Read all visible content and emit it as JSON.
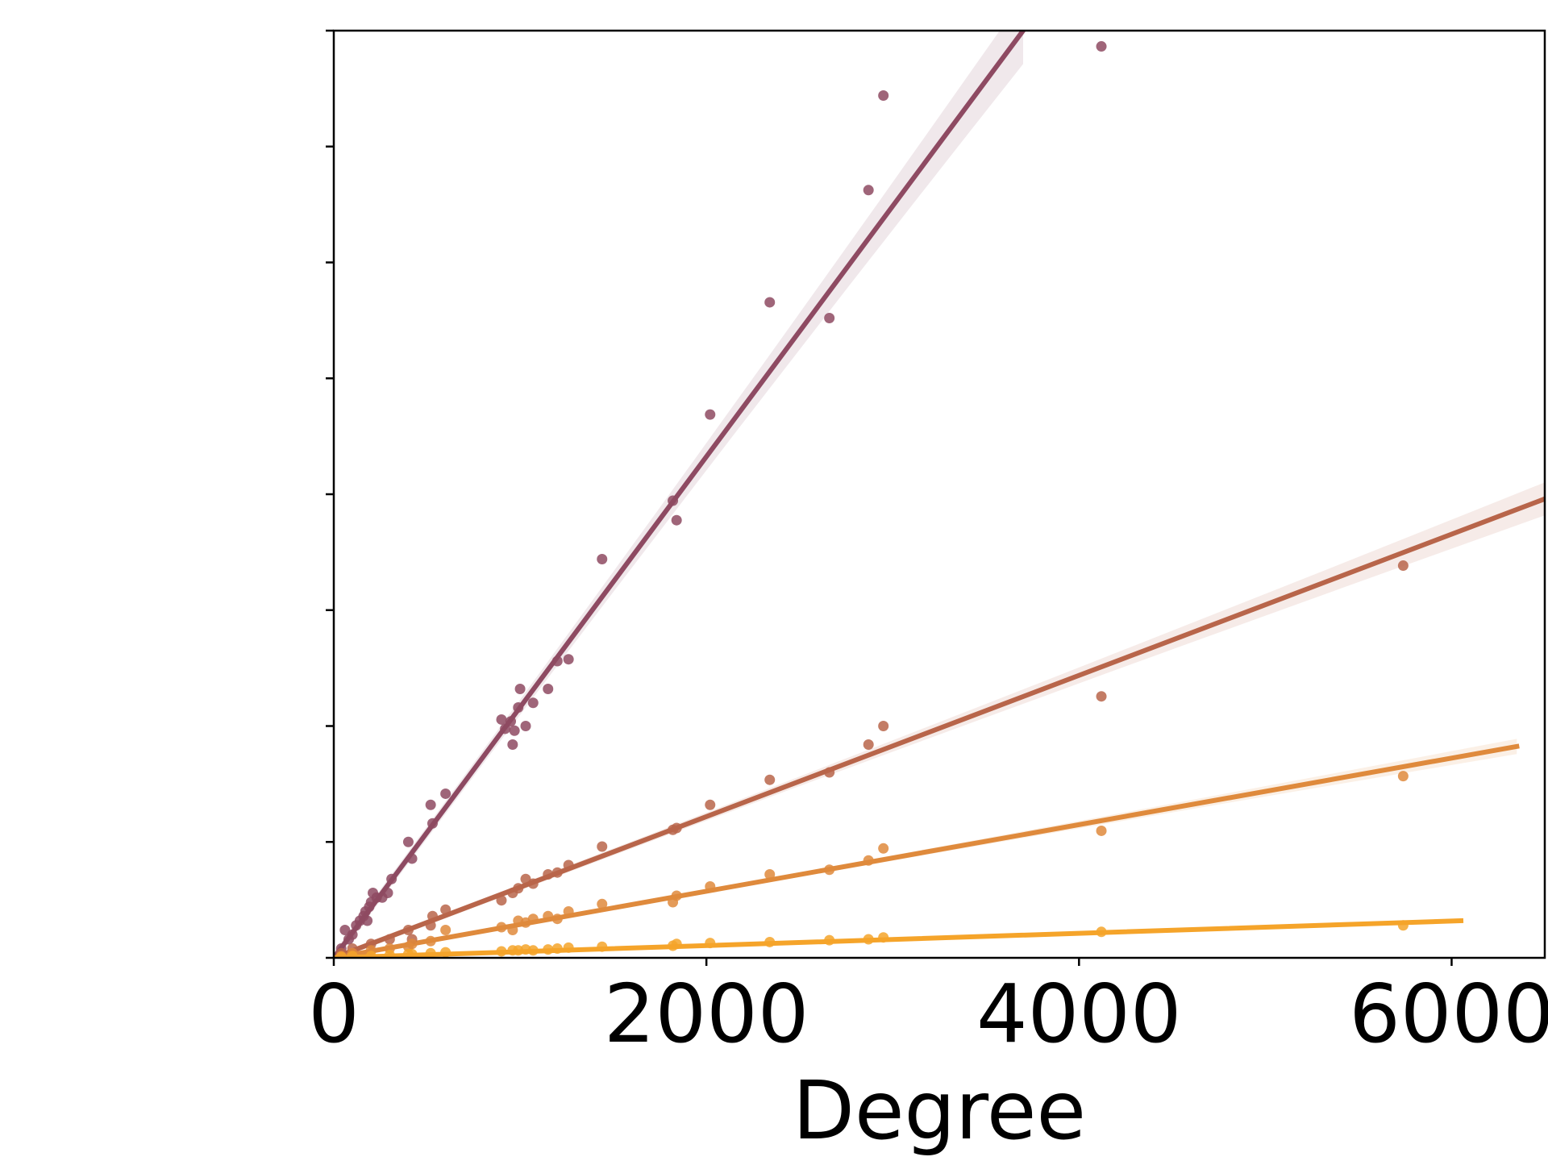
{
  "chart_data": {
    "type": "scatter",
    "title": "",
    "xlabel": "Degree",
    "ylabel": "",
    "xlim": [
      0,
      6500
    ],
    "ylim": [
      0,
      1
    ],
    "x_ticks": [
      0,
      2000,
      4000,
      6000
    ],
    "x_tick_labels": [
      "0",
      "2000",
      "4000",
      "6000"
    ],
    "y_ticks": [
      0,
      0.125,
      0.25,
      0.375,
      0.5,
      0.625,
      0.75,
      0.875,
      1.0
    ],
    "y_tick_labels_shown": false,
    "grid": false,
    "legend": false,
    "series": [
      {
        "color": "#8e4a62",
        "points": [
          [
            40,
            0.01
          ],
          [
            60,
            0.03
          ],
          [
            80,
            0.02
          ],
          [
            100,
            0.025
          ],
          [
            120,
            0.035
          ],
          [
            140,
            0.04
          ],
          [
            160,
            0.045
          ],
          [
            170,
            0.05
          ],
          [
            180,
            0.04
          ],
          [
            190,
            0.055
          ],
          [
            200,
            0.06
          ],
          [
            210,
            0.07
          ],
          [
            230,
            0.065
          ],
          [
            260,
            0.065
          ],
          [
            290,
            0.07
          ],
          [
            310,
            0.085
          ],
          [
            400,
            0.125
          ],
          [
            420,
            0.107
          ],
          [
            520,
            0.165
          ],
          [
            530,
            0.145
          ],
          [
            600,
            0.177
          ],
          [
            900,
            0.257
          ],
          [
            920,
            0.247
          ],
          [
            950,
            0.255
          ],
          [
            960,
            0.23
          ],
          [
            970,
            0.245
          ],
          [
            990,
            0.27
          ],
          [
            1000,
            0.29
          ],
          [
            1030,
            0.25
          ],
          [
            1070,
            0.275
          ],
          [
            1150,
            0.29
          ],
          [
            1200,
            0.32
          ],
          [
            1260,
            0.322
          ],
          [
            1440,
            0.43
          ],
          [
            1820,
            0.493
          ],
          [
            1840,
            0.472
          ],
          [
            2020,
            0.586
          ],
          [
            2340,
            0.707
          ],
          [
            2660,
            0.69
          ],
          [
            2870,
            0.828
          ],
          [
            2950,
            0.93
          ],
          [
            4120,
            0.983
          ]
        ],
        "fit": {
          "x": [
            0,
            3700
          ],
          "y": [
            0,
            1.0
          ]
        }
      },
      {
        "color": "#b8654a",
        "points": [
          [
            40,
            0.005
          ],
          [
            100,
            0.01
          ],
          [
            200,
            0.015
          ],
          [
            300,
            0.02
          ],
          [
            400,
            0.03
          ],
          [
            420,
            0.02
          ],
          [
            520,
            0.035
          ],
          [
            530,
            0.045
          ],
          [
            600,
            0.052
          ],
          [
            900,
            0.062
          ],
          [
            960,
            0.07
          ],
          [
            990,
            0.075
          ],
          [
            1030,
            0.085
          ],
          [
            1070,
            0.08
          ],
          [
            1150,
            0.09
          ],
          [
            1200,
            0.092
          ],
          [
            1260,
            0.1
          ],
          [
            1440,
            0.12
          ],
          [
            1820,
            0.138
          ],
          [
            1840,
            0.14
          ],
          [
            2020,
            0.165
          ],
          [
            2340,
            0.192
          ],
          [
            2660,
            0.2
          ],
          [
            2870,
            0.23
          ],
          [
            2950,
            0.25
          ],
          [
            4120,
            0.282
          ],
          [
            5740,
            0.423
          ]
        ],
        "fit": {
          "x": [
            0,
            6500
          ],
          "y": [
            0,
            0.495
          ]
        }
      },
      {
        "color": "#df8a3c",
        "points": [
          [
            40,
            0.002
          ],
          [
            100,
            0.005
          ],
          [
            200,
            0.008
          ],
          [
            300,
            0.01
          ],
          [
            400,
            0.012
          ],
          [
            420,
            0.015
          ],
          [
            520,
            0.018
          ],
          [
            600,
            0.03
          ],
          [
            900,
            0.033
          ],
          [
            960,
            0.03
          ],
          [
            990,
            0.04
          ],
          [
            1030,
            0.038
          ],
          [
            1070,
            0.042
          ],
          [
            1150,
            0.045
          ],
          [
            1200,
            0.042
          ],
          [
            1260,
            0.05
          ],
          [
            1440,
            0.058
          ],
          [
            1820,
            0.06
          ],
          [
            1840,
            0.067
          ],
          [
            2020,
            0.077
          ],
          [
            2340,
            0.09
          ],
          [
            2660,
            0.095
          ],
          [
            2870,
            0.105
          ],
          [
            2950,
            0.118
          ],
          [
            4120,
            0.137
          ],
          [
            5740,
            0.196
          ]
        ],
        "fit": {
          "x": [
            0,
            6350
          ],
          "y": [
            0,
            0.228
          ]
        }
      },
      {
        "color": "#f5a42a",
        "points": [
          [
            40,
            0.001
          ],
          [
            100,
            0.002
          ],
          [
            200,
            0.002
          ],
          [
            300,
            0.003
          ],
          [
            400,
            0.004
          ],
          [
            420,
            0.004
          ],
          [
            520,
            0.005
          ],
          [
            600,
            0.006
          ],
          [
            900,
            0.007
          ],
          [
            960,
            0.008
          ],
          [
            990,
            0.008
          ],
          [
            1030,
            0.009
          ],
          [
            1070,
            0.008
          ],
          [
            1150,
            0.009
          ],
          [
            1200,
            0.01
          ],
          [
            1260,
            0.011
          ],
          [
            1440,
            0.012
          ],
          [
            1820,
            0.013
          ],
          [
            1840,
            0.015
          ],
          [
            2020,
            0.016
          ],
          [
            2340,
            0.017
          ],
          [
            2660,
            0.019
          ],
          [
            2870,
            0.02
          ],
          [
            2950,
            0.022
          ],
          [
            4120,
            0.028
          ],
          [
            5740,
            0.035
          ]
        ],
        "fit": {
          "x": [
            0,
            6050
          ],
          "y": [
            0,
            0.04
          ]
        }
      }
    ]
  }
}
